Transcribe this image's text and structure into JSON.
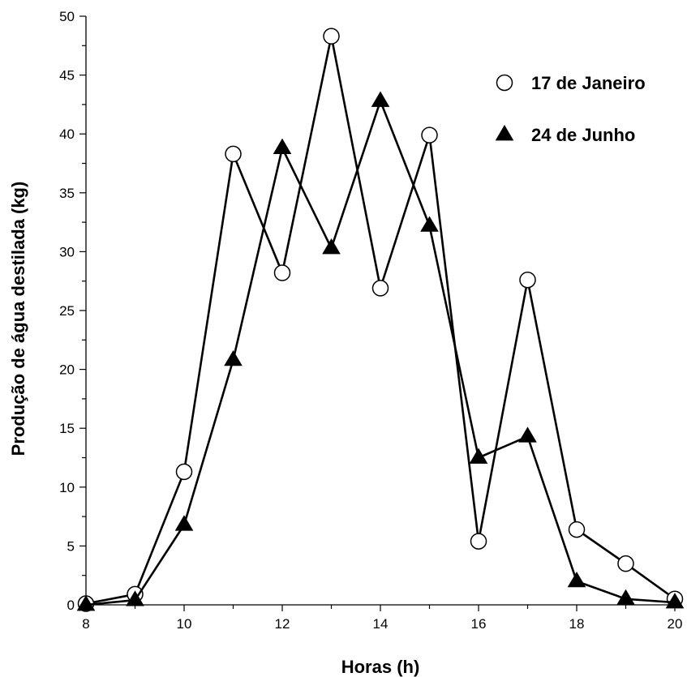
{
  "chart_data": {
    "type": "line",
    "title": "",
    "xlabel": "Horas (h)",
    "ylabel": "Produção de água destilada (kg)",
    "xlim": [
      8,
      20
    ],
    "ylim": [
      0,
      50
    ],
    "x_ticks": [
      "8",
      "10",
      "12",
      "14",
      "16",
      "18",
      "20"
    ],
    "y_ticks": [
      "0",
      "5",
      "10",
      "15",
      "20",
      "25",
      "30",
      "35",
      "40",
      "45",
      "50"
    ],
    "grid": false,
    "legend_position": "top-right",
    "x": [
      8,
      9,
      10,
      11,
      12,
      13,
      14,
      15,
      16,
      17,
      18,
      19,
      20
    ],
    "series": [
      {
        "name": "17 de Janeiro",
        "marker": "open-circle",
        "color": "#000000",
        "values": [
          0.1,
          0.9,
          11.3,
          38.3,
          28.2,
          48.3,
          26.9,
          39.9,
          5.4,
          27.6,
          6.4,
          3.5,
          0.5
        ]
      },
      {
        "name": "24 de Junho",
        "marker": "filled-triangle",
        "color": "#000000",
        "values": [
          0.0,
          0.4,
          6.8,
          20.8,
          38.8,
          30.3,
          42.8,
          32.2,
          12.5,
          14.3,
          2.0,
          0.5,
          0.2
        ]
      }
    ]
  }
}
